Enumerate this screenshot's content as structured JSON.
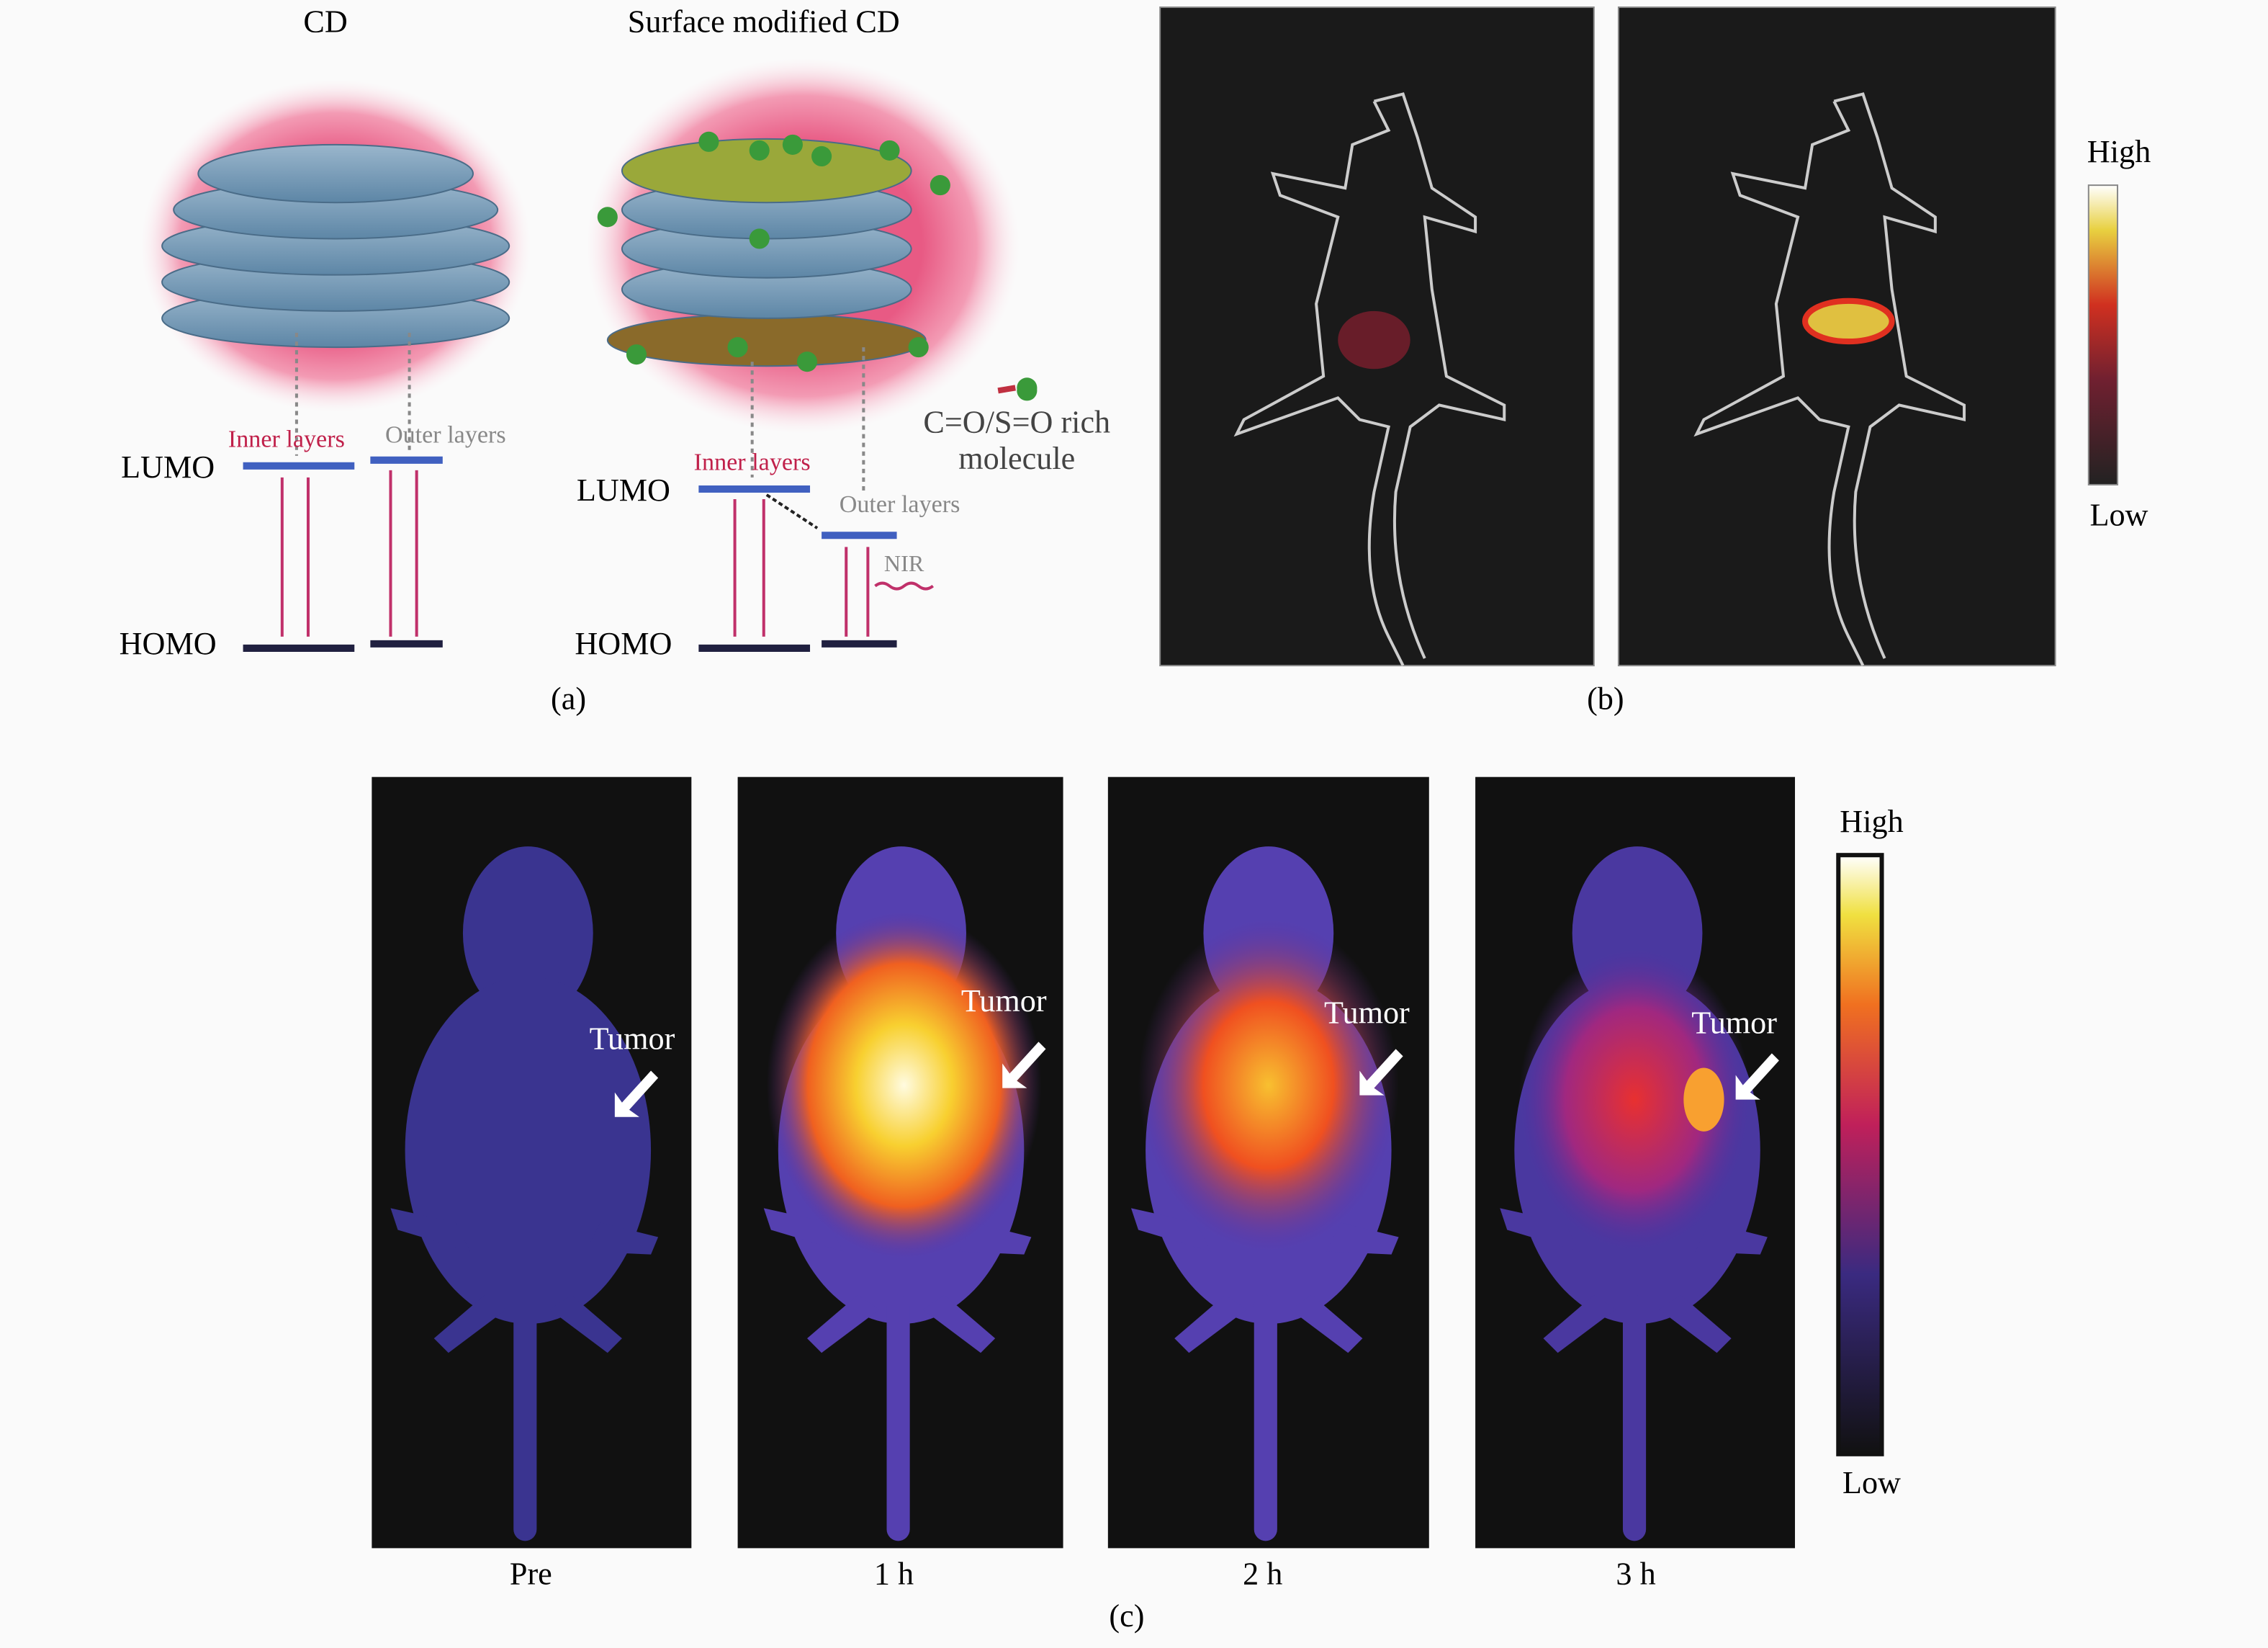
{
  "panel_a": {
    "title_cd": "CD",
    "title_modified": "Surface modified CD",
    "left": {
      "inner": "Inner layers",
      "outer": "Outer layers",
      "lumo": "LUMO",
      "homo": "HOMO"
    },
    "right": {
      "inner": "Inner layers",
      "outer": "Outer layers",
      "lumo": "LUMO",
      "homo": "HOMO",
      "nir": "NIR",
      "molecule": [
        "C=O/S=O rich",
        "molecule"
      ]
    },
    "caption": "(a)"
  },
  "panel_b": {
    "colorbar_high": "High",
    "colorbar_low": "Low",
    "caption": "(b)"
  },
  "panel_c": {
    "labels": [
      "Pre",
      "1 h",
      "2 h",
      "3 h"
    ],
    "tumor": [
      "Tumor",
      "Tumor",
      "Tumor",
      "Tumor"
    ],
    "colorbar_high": "High",
    "colorbar_low": "Low",
    "caption": "(c)"
  }
}
